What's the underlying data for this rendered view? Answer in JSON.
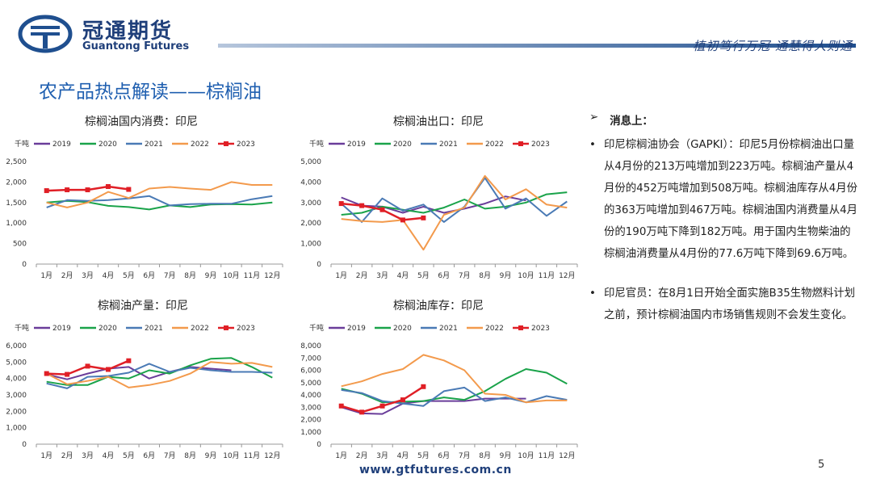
{
  "header": {
    "brand_cn": "冠通期货",
    "brand_en": "Guantong Futures",
    "slogan": "植初笃行万冠  通慧得人则通"
  },
  "slide_title": "农产品热点解读——棕榈油",
  "footer": {
    "url": "www.gtfutures.com.cn",
    "page": "5"
  },
  "colors": {
    "2019": "#6a3d9a",
    "2020": "#1aa34a",
    "2021": "#4a7ab5",
    "2022": "#f39a4c",
    "2023": "#e01f26"
  },
  "news": {
    "heading_marker": "➢",
    "heading": "消息上：",
    "items": [
      {
        "bullet": "•",
        "text": "印尼棕榈油协会（GAPKI）：印尼5月份棕榈油出口量从4月份的213万吨增加到223万吨。棕榈油产量从4月份的452万吨增加到508万吨。棕榈油库存从4月份的363万吨增加到467万吨。棕榈油国内消费量从4月份的190万吨下降到182万吨。用于国内生物柴油的棕榈油消费量从4月份的77.6万吨下降到69.6万吨。"
      },
      {
        "bullet": "•",
        "text": "印尼官员：在8月1日开始全面实施B35生物燃料计划之前，预计棕榈油国内市场销售规则不会发生变化。"
      }
    ]
  },
  "chart_data": [
    {
      "type": "line",
      "title": "棕榈油国内消费：印尼",
      "unit": "千吨",
      "ylim": [
        0,
        2500
      ],
      "yticks": [
        0,
        500,
        1000,
        1500,
        2000,
        2500
      ],
      "ytick_labels": [
        "0",
        "500",
        "1,000",
        "1,500",
        "2,000",
        "2,500"
      ],
      "categories": [
        "1月",
        "2月",
        "3月",
        "4月",
        "5月",
        "6月",
        "7月",
        "8月",
        "9月",
        "10月",
        "11月",
        "12月"
      ],
      "series": [
        {
          "name": "2019",
          "values": [
            null,
            null,
            null,
            null,
            null,
            null,
            null,
            null,
            null,
            null,
            null,
            null
          ]
        },
        {
          "name": "2020",
          "values": [
            1500,
            1540,
            1510,
            1420,
            1390,
            1330,
            1430,
            1390,
            1450,
            1460,
            1450,
            1500
          ]
        },
        {
          "name": "2021",
          "values": [
            1380,
            1560,
            1540,
            1560,
            1600,
            1660,
            1430,
            1460,
            1470,
            1470,
            1580,
            1660
          ]
        },
        {
          "name": "2022",
          "values": [
            1500,
            1380,
            1500,
            1760,
            1610,
            1840,
            1880,
            1840,
            1810,
            2000,
            1930,
            1930
          ]
        },
        {
          "name": "2023",
          "values": [
            1790,
            1810,
            1810,
            1890,
            1820,
            null,
            null,
            null,
            null,
            null,
            null,
            null
          ]
        }
      ]
    },
    {
      "type": "line",
      "title": "棕榈油出口：印尼",
      "unit": "千吨",
      "ylim": [
        0,
        5000
      ],
      "yticks": [
        0,
        1000,
        2000,
        3000,
        4000,
        5000
      ],
      "ytick_labels": [
        "0",
        "1,000",
        "2,000",
        "3,000",
        "4,000",
        "5,000"
      ],
      "categories": [
        "1月",
        "2月",
        "3月",
        "4月",
        "5月",
        "6月",
        "7月",
        "8月",
        "9月",
        "10月",
        "11月",
        "12月"
      ],
      "series": [
        {
          "name": "2019",
          "values": [
            3250,
            2850,
            2800,
            2500,
            2800,
            2500,
            2700,
            2950,
            3300,
            3100,
            null,
            null
          ]
        },
        {
          "name": "2020",
          "values": [
            2400,
            2500,
            2800,
            2650,
            2500,
            2750,
            3150,
            2700,
            2800,
            3000,
            3400,
            3500
          ]
        },
        {
          "name": "2021",
          "values": [
            2950,
            2050,
            3200,
            2600,
            2900,
            2050,
            2800,
            4200,
            2700,
            3200,
            2350,
            3050
          ]
        },
        {
          "name": "2022",
          "values": [
            2200,
            2100,
            2050,
            2150,
            700,
            2400,
            2750,
            4300,
            3150,
            3650,
            2900,
            2750
          ]
        },
        {
          "name": "2023",
          "values": [
            2950,
            2850,
            2650,
            2150,
            2250,
            null,
            null,
            null,
            null,
            null,
            null,
            null
          ]
        }
      ]
    },
    {
      "type": "line",
      "title": "棕榈油产量：印尼",
      "unit": "千吨",
      "ylim": [
        0,
        6000
      ],
      "yticks": [
        0,
        1000,
        2000,
        3000,
        4000,
        5000,
        6000
      ],
      "ytick_labels": [
        "0",
        "1,000",
        "2,000",
        "3,000",
        "4,000",
        "5,000",
        "6,000"
      ],
      "categories": [
        "1月",
        "2月",
        "3月",
        "4月",
        "5月",
        "6月",
        "7月",
        "8月",
        "9月",
        "10月",
        "11月",
        "12月"
      ],
      "series": [
        {
          "name": "2019",
          "values": [
            4250,
            3950,
            4300,
            4600,
            4700,
            4000,
            4400,
            4700,
            4600,
            4500,
            null,
            null
          ]
        },
        {
          "name": "2020",
          "values": [
            3800,
            3600,
            3600,
            4100,
            4000,
            4500,
            4300,
            4800,
            5200,
            5250,
            4700,
            4050
          ]
        },
        {
          "name": "2021",
          "values": [
            3700,
            3400,
            4100,
            4150,
            4350,
            4900,
            4400,
            4650,
            4500,
            4400,
            4400,
            4350
          ]
        },
        {
          "name": "2022",
          "values": [
            4300,
            3650,
            3850,
            4100,
            3450,
            3600,
            3850,
            4300,
            5000,
            4900,
            4950,
            4700
          ]
        },
        {
          "name": "2023",
          "values": [
            4300,
            4250,
            4750,
            4550,
            5080,
            null,
            null,
            null,
            null,
            null,
            null,
            null
          ]
        }
      ]
    },
    {
      "type": "line",
      "title": "棕榈油库存：印尼",
      "unit": "千吨",
      "ylim": [
        0,
        8000
      ],
      "yticks": [
        0,
        1000,
        2000,
        3000,
        4000,
        5000,
        6000,
        7000,
        8000
      ],
      "ytick_labels": [
        "0",
        "1,000",
        "2,000",
        "3,000",
        "4,000",
        "5,000",
        "6,000",
        "7,000",
        "8,000"
      ],
      "categories": [
        "1月",
        "2月",
        "3月",
        "4月",
        "5月",
        "6月",
        "7月",
        "8月",
        "9月",
        "10月",
        "11月",
        "12月"
      ],
      "series": [
        {
          "name": "2019",
          "values": [
            3000,
            2500,
            2450,
            3300,
            3500,
            3500,
            3500,
            3700,
            3700,
            3700,
            null,
            null
          ]
        },
        {
          "name": "2020",
          "values": [
            4500,
            4100,
            3400,
            3450,
            3500,
            3800,
            3600,
            4300,
            5300,
            6100,
            5800,
            4900
          ]
        },
        {
          "name": "2021",
          "values": [
            4400,
            4150,
            3500,
            3300,
            3100,
            4300,
            4600,
            3500,
            3800,
            3400,
            3900,
            3600
          ]
        },
        {
          "name": "2022",
          "values": [
            4700,
            5100,
            5700,
            6100,
            7250,
            6800,
            6000,
            4100,
            4000,
            3400,
            3550,
            3550
          ]
        },
        {
          "name": "2023",
          "values": [
            3100,
            2600,
            3100,
            3600,
            4670,
            null,
            null,
            null,
            null,
            null,
            null,
            null
          ]
        }
      ]
    }
  ]
}
